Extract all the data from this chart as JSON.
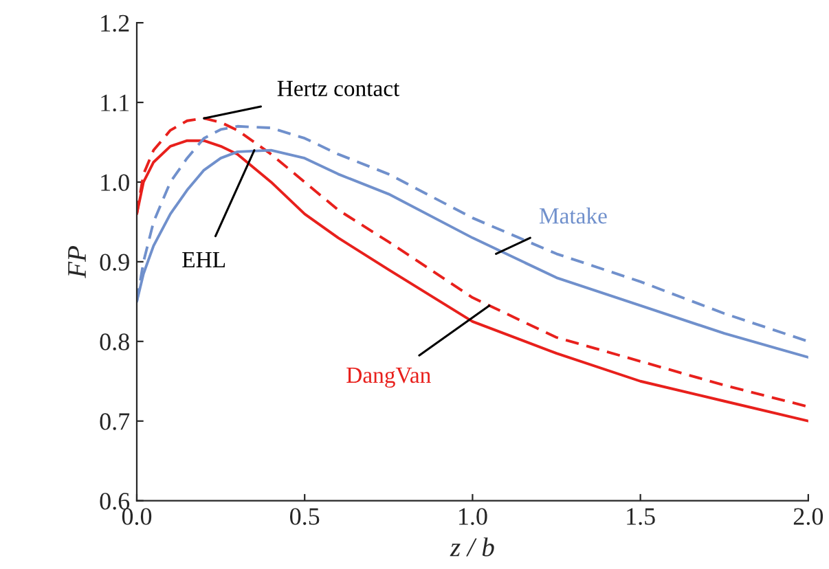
{
  "chart_data": {
    "type": "line",
    "xlabel": "z / b",
    "ylabel": "FP",
    "x": [
      0,
      0.02,
      0.05,
      0.1,
      0.15,
      0.2,
      0.25,
      0.3,
      0.4,
      0.5,
      0.6,
      0.75,
      1.0,
      1.25,
      1.5,
      1.75,
      2.0
    ],
    "series": [
      {
        "color": "#e8201c",
        "line_style": "solid",
        "values": [
          0.96,
          1.0,
          1.025,
          1.045,
          1.052,
          1.052,
          1.045,
          1.035,
          1.0,
          0.96,
          0.93,
          0.89,
          0.825,
          0.785,
          0.75,
          0.725,
          0.7
        ]
      },
      {
        "color": "#e8201c",
        "line_style": "dashed",
        "values": [
          0.96,
          1.01,
          1.04,
          1.065,
          1.077,
          1.08,
          1.075,
          1.065,
          1.035,
          1.0,
          0.965,
          0.925,
          0.855,
          0.805,
          0.775,
          0.745,
          0.718
        ]
      },
      {
        "color": "#7090cc",
        "line_style": "dashed",
        "values": [
          0.85,
          0.9,
          0.95,
          1.0,
          1.03,
          1.055,
          1.066,
          1.07,
          1.068,
          1.055,
          1.035,
          1.01,
          0.955,
          0.91,
          0.875,
          0.835,
          0.8
        ]
      },
      {
        "color": "#7090cc",
        "line_style": "solid",
        "values": [
          0.85,
          0.885,
          0.92,
          0.96,
          0.99,
          1.015,
          1.03,
          1.038,
          1.04,
          1.03,
          1.01,
          0.985,
          0.93,
          0.88,
          0.845,
          0.81,
          0.78
        ]
      }
    ],
    "annotations": [
      {
        "text": "Hertz contact",
        "x": 0.2,
        "y": 1.08
      },
      {
        "text": "EHL",
        "x": 0.35,
        "y": 1.04
      },
      {
        "text": "Matake",
        "x": 1.07,
        "y": 0.91
      },
      {
        "text": "DangVan",
        "x": 1.05,
        "y": 0.845
      }
    ],
    "xlim": [
      0,
      2.0
    ],
    "ylim": [
      0.6,
      1.2
    ],
    "xticks": [
      {
        "value": 0,
        "label": "0.0"
      },
      0.5,
      {
        "value": 1,
        "label": "1.0"
      },
      1.5,
      {
        "value": 2,
        "label": "2.0"
      }
    ],
    "yticks": [
      0.6,
      0.7,
      0.8,
      0.9,
      {
        "value": 1,
        "label": "1.0"
      },
      1.1,
      1.2
    ],
    "grid": false,
    "legend": false
  }
}
